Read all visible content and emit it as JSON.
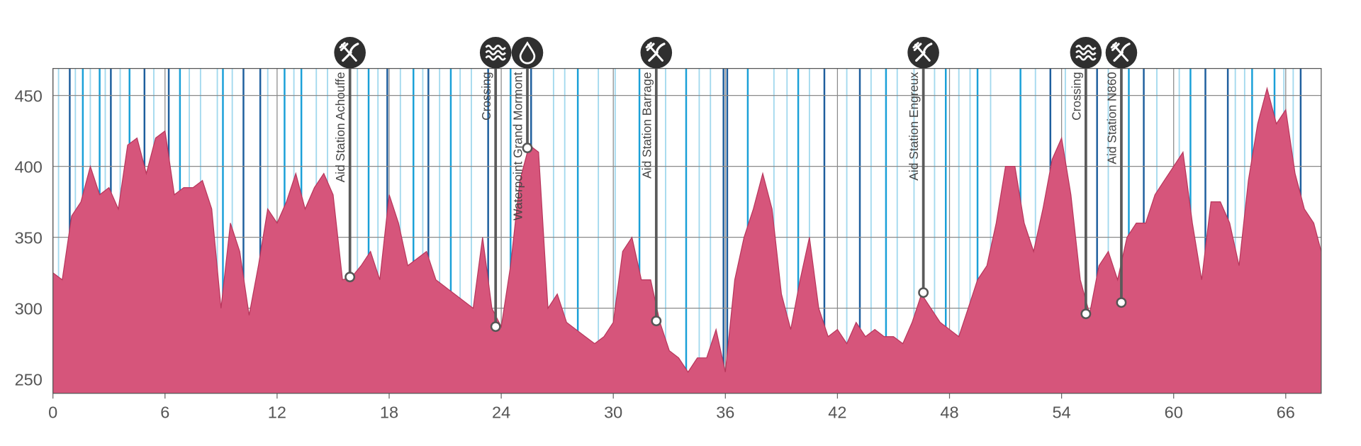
{
  "chart_data": {
    "type": "area",
    "color": "#d6557b",
    "line_color": "#b8365c",
    "x": [
      0,
      0.5,
      1,
      1.5,
      2,
      2.5,
      3,
      3.5,
      4,
      4.5,
      5,
      5.5,
      6,
      6.5,
      7,
      7.5,
      8,
      8.5,
      9,
      9.5,
      10,
      10.5,
      11,
      11.5,
      12,
      12.5,
      13,
      13.5,
      14,
      14.5,
      15,
      15.5,
      16,
      16.5,
      17,
      17.5,
      18,
      18.5,
      19,
      19.5,
      20,
      20.5,
      21,
      21.5,
      22,
      22.5,
      23,
      23.5,
      24,
      24.5,
      25,
      25.5,
      26,
      26.5,
      27,
      27.5,
      28,
      28.5,
      29,
      29.5,
      30,
      30.5,
      31,
      31.5,
      32,
      32.5,
      33,
      33.5,
      34,
      34.5,
      35,
      35.5,
      36,
      36.5,
      37,
      37.5,
      38,
      38.5,
      39,
      39.5,
      40,
      40.5,
      41,
      41.5,
      42,
      42.5,
      43,
      43.5,
      44,
      44.5,
      45,
      45.5,
      46,
      46.5,
      47,
      47.5,
      48,
      48.5,
      49,
      49.5,
      50,
      50.5,
      51,
      51.5,
      52,
      52.5,
      53,
      53.5,
      54,
      54.5,
      55,
      55.5,
      56,
      56.5,
      57,
      57.5,
      58,
      58.5,
      59,
      59.5,
      60,
      60.5,
      61,
      61.5,
      62,
      62.5,
      63,
      63.5,
      64,
      64.5,
      65,
      65.5,
      66,
      66.5,
      67,
      67.5,
      67.9
    ],
    "values": [
      325,
      320,
      365,
      375,
      400,
      380,
      385,
      370,
      415,
      420,
      395,
      420,
      425,
      380,
      385,
      385,
      390,
      370,
      300,
      360,
      340,
      295,
      330,
      370,
      360,
      375,
      395,
      370,
      385,
      395,
      380,
      320,
      322,
      330,
      340,
      320,
      380,
      360,
      330,
      335,
      340,
      320,
      315,
      310,
      305,
      300,
      350,
      300,
      287,
      330,
      390,
      415,
      410,
      300,
      310,
      290,
      285,
      280,
      275,
      280,
      290,
      340,
      350,
      320,
      320,
      290,
      270,
      265,
      255,
      265,
      265,
      285,
      255,
      320,
      350,
      370,
      395,
      370,
      310,
      285,
      320,
      350,
      300,
      280,
      285,
      275,
      290,
      280,
      285,
      280,
      280,
      275,
      290,
      310,
      300,
      290,
      285,
      280,
      300,
      320,
      330,
      360,
      400,
      400,
      360,
      340,
      370,
      405,
      420,
      380,
      320,
      296,
      330,
      340,
      320,
      350,
      360,
      360,
      380,
      390,
      400,
      410,
      360,
      320,
      375,
      375,
      360,
      330,
      390,
      430,
      455,
      430,
      440,
      395,
      370,
      360,
      340
    ],
    "xlim": [
      0,
      67.9
    ],
    "ylim": [
      240,
      469
    ],
    "xticks": [
      0,
      6,
      12,
      18,
      24,
      30,
      36,
      42,
      48,
      54,
      60,
      66
    ],
    "yticks": [
      250,
      300,
      350,
      400,
      450
    ],
    "grid": true,
    "stripes": {
      "dark": [
        0.9,
        3.1,
        4.9,
        6.2,
        10.2,
        11.1,
        17.9,
        20.1,
        23.3,
        25.6,
        35.9,
        36.1,
        41.3,
        43.2,
        53.4,
        55.9,
        58.4,
        61.7,
        62.9,
        66.8
      ],
      "medium": [
        1.6,
        2.5,
        4.1,
        6.8,
        9.1,
        12.4,
        13.3,
        16.9,
        19.3,
        21.3,
        24.5,
        28.1,
        31.4,
        33.9,
        37.2,
        39.9,
        44.6,
        47.8,
        49.5,
        51.8,
        57.6,
        60.9,
        64.2,
        65.4
      ],
      "light": [
        0.3,
        1.2,
        2.0,
        2.8,
        3.6,
        5.4,
        7.3,
        7.9,
        8.8,
        9.6,
        11.5,
        12.9,
        14.1,
        14.7,
        16.3,
        17.4,
        18.6,
        19.8,
        20.7,
        21.8,
        22.4,
        26.8,
        27.4,
        29.2,
        30.1,
        32.8,
        34.6,
        35.2,
        38.6,
        39.3,
        40.5,
        42.5,
        43.8,
        45.2,
        46.1,
        47.2,
        48.5,
        49.1,
        50.2,
        52.6,
        54.2,
        56.5,
        59.1,
        60.3,
        63.3,
        63.8,
        65.9,
        66.4
      ]
    },
    "stripe_colors": {
      "dark": "#1f5f9e",
      "medium": "#1aa0d8",
      "light": "#a3d9ee"
    },
    "markers": [
      {
        "name": "Aid Station Achouffe",
        "x": 15.9,
        "elevation": 322,
        "icon": "food"
      },
      {
        "name": "Crossing",
        "x": 23.7,
        "elevation": 287,
        "icon": "crossing"
      },
      {
        "name": "Waterpoint Grand Mormont",
        "x": 25.4,
        "elevation": 413,
        "icon": "water"
      },
      {
        "name": "Aid Station Barrage",
        "x": 32.3,
        "elevation": 291,
        "icon": "food"
      },
      {
        "name": "Aid Station Engreux",
        "x": 46.6,
        "elevation": 311,
        "icon": "food"
      },
      {
        "name": "Crossing",
        "x": 55.3,
        "elevation": 296,
        "icon": "crossing"
      },
      {
        "name": "Aid Station N860",
        "x": 57.2,
        "elevation": 304,
        "icon": "food"
      }
    ]
  }
}
